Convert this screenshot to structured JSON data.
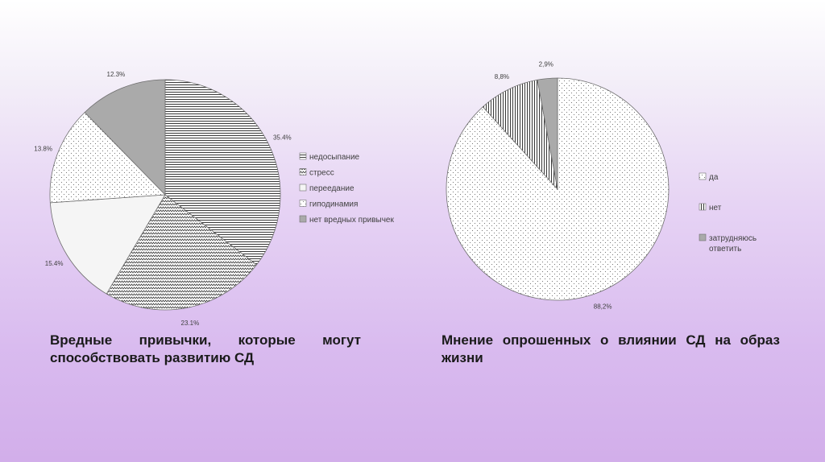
{
  "chart_data": [
    {
      "type": "pie",
      "categories": [
        "недосыпание",
        "стресс",
        "переедание",
        "гиподинамия",
        "нет вредных привычек"
      ],
      "values": [
        35.4,
        23.1,
        15.4,
        13.8,
        12.3
      ],
      "data_labels": [
        "35.4%",
        "23.1%",
        "15.4%",
        "13.8%",
        "12.3%"
      ],
      "legend": {
        "placement": "right",
        "entries": [
          "недосыпание",
          "стресс",
          "переедание",
          "гиподинамия",
          "нет вредных привычек"
        ]
      },
      "caption": "Вредные привычки, которые могут способствовать развитию СД",
      "fills": [
        "hlines",
        "zigzag",
        "#f5f5f5",
        "dots",
        "#aaaaaa"
      ]
    },
    {
      "type": "pie",
      "categories": [
        "да",
        "нет",
        "затрудняюсь ответить"
      ],
      "values": [
        88.2,
        8.8,
        2.9
      ],
      "data_labels": [
        "88,2%",
        "8,8%",
        "2,9%"
      ],
      "legend": {
        "placement": "right",
        "entries": [
          "да",
          "нет",
          "затрудняюсь ответить"
        ]
      },
      "caption": "Мнение опрошенных о влиянии СД на образ жизни",
      "fills": [
        "dots",
        "vlines",
        "#aaaaaa"
      ]
    }
  ]
}
